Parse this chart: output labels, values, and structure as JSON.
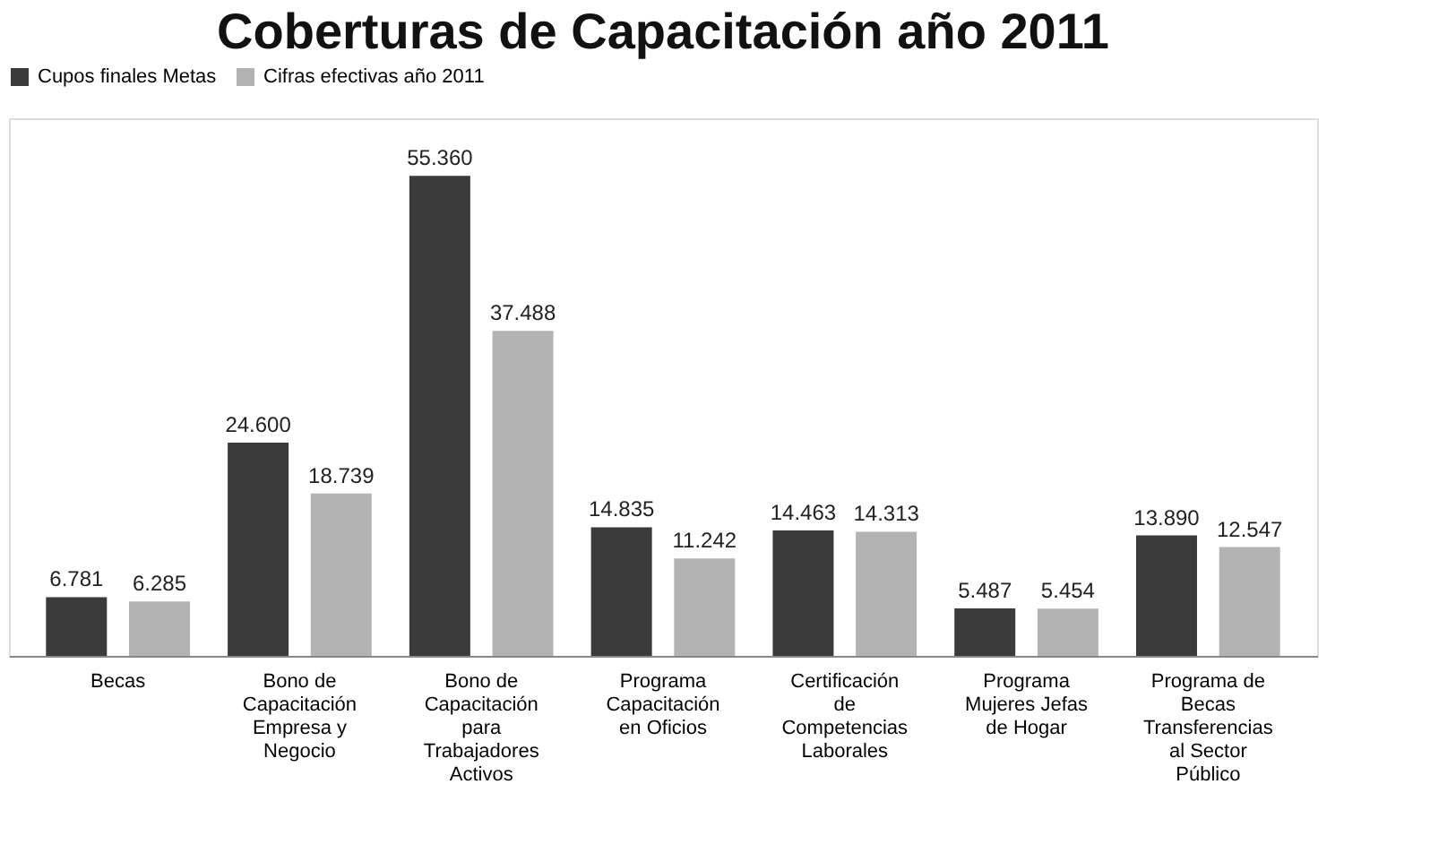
{
  "chart_data": {
    "type": "bar",
    "title": "Coberturas de Capacitación año 2011",
    "categories": [
      "Becas",
      "Bono de Capacitación Empresa y Negocio",
      "Bono de Capacitación para Trabajadores Activos",
      "Programa Capacitación en Oficios",
      "Certificación de Competencias Laborales",
      "Programa Mujeres Jefas de Hogar",
      "Programa de Becas Transferencias al Sector Público"
    ],
    "series": [
      {
        "name": "Cupos finales Metas",
        "color": "#3b3b3b",
        "values": [
          6781,
          24600,
          55360,
          14835,
          14463,
          5487,
          13890
        ],
        "value_labels": [
          "6.781",
          "24.600",
          "55.360",
          "14.835",
          "14.463",
          "5.487",
          "13.890"
        ]
      },
      {
        "name": "Cifras efectivas año 2011",
        "color": "#b3b3b3",
        "values": [
          6285,
          18739,
          37488,
          11242,
          14313,
          5454,
          12547
        ],
        "value_labels": [
          "6.285",
          "18.739",
          "37.488",
          "11.242",
          "14.313",
          "5.454",
          "12.547"
        ]
      }
    ],
    "legend": "top",
    "grid": false
  }
}
